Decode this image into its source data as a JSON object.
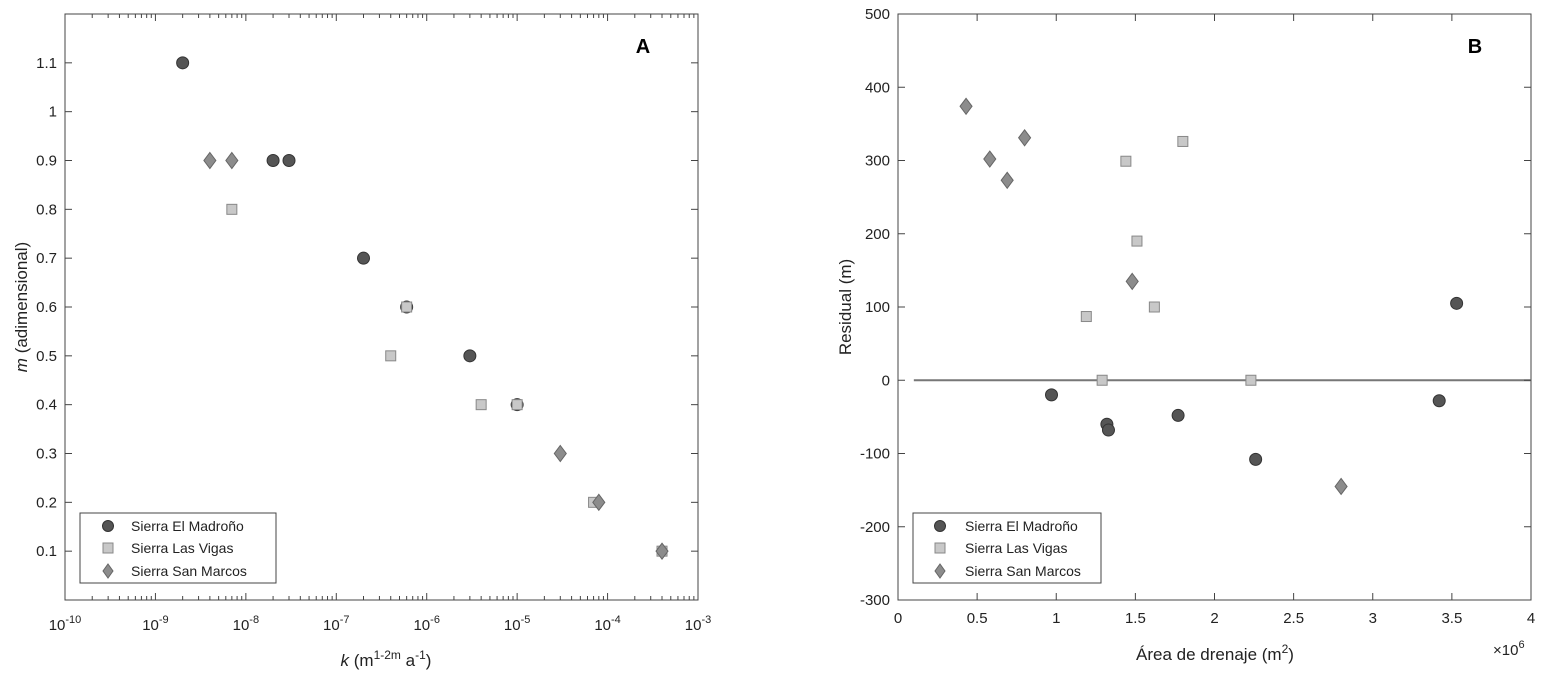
{
  "chart_data": [
    {
      "type": "scatter",
      "panel_label": "A",
      "xscale": "log",
      "xlim": [
        1e-10,
        0.001
      ],
      "ylim": [
        0,
        1.2
      ],
      "x_tick_values": [
        1e-10,
        1e-09,
        1e-08,
        1e-07,
        1e-06,
        1e-05,
        0.0001,
        0.001
      ],
      "x_tick_labels": [
        {
          "base": "10",
          "exp": "-10"
        },
        {
          "base": "10",
          "exp": "-9"
        },
        {
          "base": "10",
          "exp": "-8"
        },
        {
          "base": "10",
          "exp": "-7"
        },
        {
          "base": "10",
          "exp": "-6"
        },
        {
          "base": "10",
          "exp": "-5"
        },
        {
          "base": "10",
          "exp": "-4"
        },
        {
          "base": "10",
          "exp": "-3"
        }
      ],
      "y_ticks": [
        "0.1",
        "0.2",
        "0.3",
        "0.4",
        "0.5",
        "0.6",
        "0.7",
        "0.8",
        "0.9",
        "1",
        "1.1"
      ],
      "xlabel": {
        "var": "k",
        "unit_open": " (m",
        "exp1": "1-2m",
        "mid": " a",
        "exp2": "-1",
        "unit_close": ")"
      },
      "ylabel": {
        "var": "m",
        "rest": " (adimensional)"
      },
      "grid": false,
      "legend_position": "bottom-left",
      "series": [
        {
          "name": "Sierra El Madroño",
          "marker": "circle",
          "color": "#555555",
          "x": [
            2e-09,
            2e-08,
            3e-08,
            2e-07,
            6e-07,
            3e-06,
            1e-05
          ],
          "y": [
            1.1,
            0.9,
            0.9,
            0.7,
            0.6,
            0.5,
            0.4
          ]
        },
        {
          "name": "Sierra Las Vigas",
          "marker": "square",
          "color": "#c8c8c8",
          "x": [
            7e-09,
            4e-07,
            6e-07,
            4e-06,
            1e-05,
            7e-05,
            0.0004
          ],
          "y": [
            0.8,
            0.5,
            0.6,
            0.4,
            0.4,
            0.2,
            0.1
          ]
        },
        {
          "name": "Sierra San Marcos",
          "marker": "diamond",
          "color": "#8c8c8c",
          "x": [
            4e-09,
            7e-09,
            3e-05,
            8e-05,
            0.0004
          ],
          "y": [
            0.9,
            0.9,
            0.3,
            0.2,
            0.1
          ]
        }
      ]
    },
    {
      "type": "scatter",
      "panel_label": "B",
      "xscale": "linear",
      "xlim": [
        0,
        4
      ],
      "ylim": [
        -300,
        500
      ],
      "x_ticks": [
        "0",
        "0.5",
        "1",
        "1.5",
        "2",
        "2.5",
        "3",
        "3.5",
        "4"
      ],
      "y_ticks": [
        "-300",
        "-200",
        "-100",
        "0",
        "100",
        "200",
        "300",
        "400",
        "500"
      ],
      "x_multiplier": {
        "base": "×10",
        "exp": "6"
      },
      "xlabel": {
        "text": "Área de drenaje (m",
        "exp": "2",
        "close": ")"
      },
      "ylabel": {
        "text": "Residual (m)"
      },
      "reference_line_y": 0,
      "reference_line_x_start": 0.1,
      "grid": false,
      "legend_position": "bottom-left",
      "series": [
        {
          "name": "Sierra El Madroño",
          "marker": "circle",
          "color": "#555555",
          "x": [
            0.97,
            1.32,
            1.33,
            1.77,
            2.26,
            3.42,
            3.53
          ],
          "y": [
            -20,
            -60,
            -68,
            -48,
            -108,
            -28,
            105
          ]
        },
        {
          "name": "Sierra Las Vigas",
          "marker": "square",
          "color": "#c8c8c8",
          "x": [
            1.19,
            1.29,
            1.44,
            1.51,
            1.62,
            1.8,
            2.23
          ],
          "y": [
            87,
            0,
            299,
            190,
            100,
            326,
            0
          ]
        },
        {
          "name": "Sierra San Marcos",
          "marker": "diamond",
          "color": "#8c8c8c",
          "x": [
            0.43,
            0.58,
            0.69,
            0.8,
            1.48,
            2.8
          ],
          "y": [
            374,
            302,
            273,
            331,
            135,
            -145
          ]
        }
      ]
    }
  ]
}
